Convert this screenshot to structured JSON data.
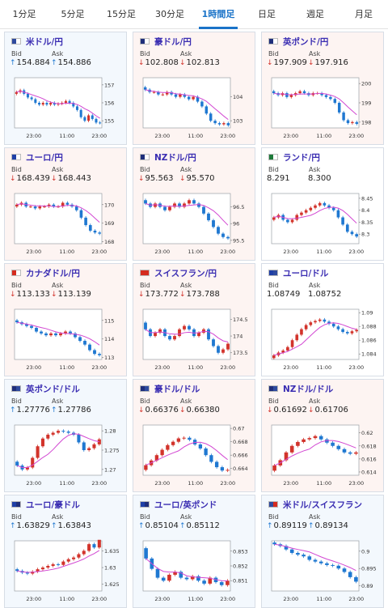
{
  "tabs": [
    {
      "label": "1分足",
      "active": false
    },
    {
      "label": "5分足",
      "active": false
    },
    {
      "label": "15分足",
      "active": false
    },
    {
      "label": "30分足",
      "active": false
    },
    {
      "label": "1時間足",
      "active": true
    },
    {
      "label": "日足",
      "active": false
    },
    {
      "label": "週足",
      "active": false
    },
    {
      "label": "月足",
      "active": false
    }
  ],
  "labels": {
    "bid": "Bid",
    "ask": "Ask"
  },
  "colors": {
    "up": "#1f78d1",
    "down": "#d2332b",
    "ma": "#d247d2",
    "accent": "#1a73c8"
  },
  "cards": [
    {
      "name": "米ドル/円",
      "dir": "up",
      "bid": "154.884",
      "ask": "154.886",
      "flags": [
        "#2e4a9e",
        "#ffffff"
      ],
      "yticks": [
        "157",
        "156",
        "155"
      ],
      "xticks": [
        "23:00",
        "11:00",
        "23:00"
      ]
    },
    {
      "name": "豪ドル/円",
      "dir": "down",
      "bid": "102.808",
      "ask": "102.813",
      "flags": [
        "#1f2e7a",
        "#ffffff"
      ],
      "yticks": [
        "104",
        "103"
      ],
      "xticks": [
        "23:00",
        "11:00",
        "23:00"
      ]
    },
    {
      "name": "英ポンド/円",
      "dir": "down",
      "bid": "197.909",
      "ask": "197.916",
      "flags": [
        "#1f2e7a",
        "#ffffff"
      ],
      "yticks": [
        "200",
        "199",
        "198"
      ],
      "xticks": [
        "23:00",
        "11:00",
        "23:00"
      ]
    },
    {
      "name": "ユーロ/円",
      "dir": "down",
      "bid": "168.439",
      "ask": "168.443",
      "flags": [
        "#1f3fa6",
        "#ffffff"
      ],
      "yticks": [
        "170",
        "169",
        "168"
      ],
      "xticks": [
        "23:00",
        "11:00",
        "23:00"
      ]
    },
    {
      "name": "NZドル/円",
      "dir": "down",
      "bid": "95.563",
      "ask": "95.570",
      "flags": [
        "#1f2e7a",
        "#ffffff"
      ],
      "yticks": [
        "96.5",
        "96",
        "95.5"
      ],
      "xticks": [
        "23:00",
        "11:00",
        "23:00"
      ]
    },
    {
      "name": "ランド/円",
      "dir": "none",
      "bid": "8.291",
      "ask": "8.300",
      "flags": [
        "#1d7a3a",
        "#ffffff"
      ],
      "yticks": [
        "8.45",
        "8.4",
        "8.35",
        "8.3"
      ],
      "xticks": [
        "23:00",
        "11:00",
        "23:00"
      ]
    },
    {
      "name": "カナダドル/円",
      "dir": "down",
      "bid": "113.133",
      "ask": "113.139",
      "flags": [
        "#d52b1e",
        "#ffffff"
      ],
      "yticks": [
        "115",
        "114",
        "113"
      ],
      "xticks": [
        "23:00",
        "11:00",
        "23:00"
      ]
    },
    {
      "name": "スイスフラン/円",
      "dir": "down",
      "bid": "173.772",
      "ask": "173.788",
      "flags": [
        "#d52b1e",
        "#d52b1e"
      ],
      "yticks": [
        "174.5",
        "174",
        "173.5"
      ],
      "xticks": [
        "23:00",
        "11:00",
        "23:00"
      ]
    },
    {
      "name": "ユーロ/ドル",
      "dir": "none",
      "bid": "1.08749",
      "ask": "1.08752",
      "flags": [
        "#1f3fa6",
        "#2e4a9e"
      ],
      "yticks": [
        "1.09",
        "1.088",
        "1.086",
        "1.084"
      ],
      "xticks": [
        "23:00",
        "11:00",
        "23:00"
      ]
    },
    {
      "name": "英ポンド/ドル",
      "dir": "up",
      "bid": "1.27776",
      "ask": "1.27786",
      "flags": [
        "#1f2e7a",
        "#2e4a9e"
      ],
      "yticks": [
        "1.28",
        "1.275",
        "1.27"
      ],
      "xticks": [
        "23:00",
        "11:00",
        "23:00"
      ]
    },
    {
      "name": "豪ドル/ドル",
      "dir": "down",
      "bid": "0.66376",
      "ask": "0.66380",
      "flags": [
        "#1f2e7a",
        "#2e4a9e"
      ],
      "yticks": [
        "0.67",
        "0.668",
        "0.666",
        "0.664"
      ],
      "xticks": [
        "23:00",
        "11:00",
        "23:00"
      ]
    },
    {
      "name": "NZドル/ドル",
      "dir": "down",
      "bid": "0.61692",
      "ask": "0.61706",
      "flags": [
        "#1f2e7a",
        "#2e4a9e"
      ],
      "yticks": [
        "0.62",
        "0.618",
        "0.616",
        "0.614"
      ],
      "xticks": [
        "23:00",
        "11:00",
        "23:00"
      ]
    },
    {
      "name": "ユーロ/豪ドル",
      "dir": "up",
      "bid": "1.63829",
      "ask": "1.63843",
      "flags": [
        "#1f3fa6",
        "#1f2e7a"
      ],
      "yticks": [
        "1.635",
        "1.63",
        "1.625"
      ],
      "xticks": [
        "23:00",
        "11:00",
        "23:00"
      ]
    },
    {
      "name": "ユーロ/英ポンド",
      "dir": "up",
      "bid": "0.85104",
      "ask": "0.85112",
      "flags": [
        "#1f3fa6",
        "#1f2e7a"
      ],
      "yticks": [
        "0.853",
        "0.852",
        "0.851"
      ],
      "xticks": [
        "23:00",
        "11:00",
        "23:00"
      ]
    },
    {
      "name": "米ドル/スイスフラン",
      "dir": "up",
      "bid": "0.89119",
      "ask": "0.89134",
      "flags": [
        "#2e4a9e",
        "#d52b1e"
      ],
      "yticks": [
        "0.9",
        "0.895",
        "0.89"
      ],
      "xticks": [
        "23:00",
        "11:00",
        "23:00"
      ]
    }
  ],
  "chart_data": [
    {
      "type": "candlestick",
      "pair": "米ドル/円",
      "ylim": [
        154.6,
        157.4
      ],
      "close": [
        156.6,
        156.7,
        156.5,
        156.3,
        156.2,
        156.0,
        155.9,
        156.0,
        155.9,
        156.0,
        155.9,
        155.95,
        156.0,
        156.1,
        156.0,
        155.8,
        155.6,
        155.2,
        155.0,
        155.3,
        155.1,
        154.9,
        154.88
      ]
    },
    {
      "type": "candlestick",
      "pair": "豪ドル/円",
      "ylim": [
        102.7,
        104.8
      ],
      "close": [
        104.3,
        104.2,
        104.2,
        104.1,
        104.1,
        104.2,
        104.1,
        104.0,
        104.1,
        104.0,
        103.9,
        104.0,
        103.8,
        103.6,
        103.3,
        103.0,
        102.9,
        102.85,
        102.9,
        102.81
      ]
    },
    {
      "type": "candlestick",
      "pair": "英ポンド/円",
      "ylim": [
        197.7,
        200.3
      ],
      "close": [
        199.5,
        199.4,
        199.5,
        199.3,
        199.4,
        199.5,
        199.6,
        199.5,
        199.4,
        199.5,
        199.5,
        199.4,
        199.3,
        199.2,
        199.0,
        198.5,
        198.1,
        197.95,
        198.0,
        197.91
      ]
    },
    {
      "type": "candlestick",
      "pair": "ユーロ/円",
      "ylim": [
        167.9,
        170.6
      ],
      "close": [
        170.0,
        170.1,
        169.9,
        169.9,
        169.8,
        169.9,
        169.9,
        170.0,
        169.9,
        169.9,
        170.1,
        170.0,
        169.9,
        169.7,
        169.3,
        168.9,
        168.6,
        168.5,
        168.44
      ]
    },
    {
      "type": "candlestick",
      "pair": "NZドル/円",
      "ylim": [
        95.4,
        96.9
      ],
      "close": [
        96.6,
        96.5,
        96.6,
        96.5,
        96.4,
        96.5,
        96.6,
        96.5,
        96.6,
        96.7,
        96.6,
        96.5,
        96.3,
        96.1,
        95.9,
        95.7,
        95.6,
        95.56
      ]
    },
    {
      "type": "candlestick",
      "pair": "ランド/円",
      "ylim": [
        8.26,
        8.47
      ],
      "close": [
        8.37,
        8.38,
        8.36,
        8.35,
        8.36,
        8.38,
        8.39,
        8.4,
        8.41,
        8.42,
        8.43,
        8.42,
        8.41,
        8.4,
        8.37,
        8.34,
        8.31,
        8.3,
        8.29
      ]
    },
    {
      "type": "candlestick",
      "pair": "カナダドル/円",
      "ylim": [
        112.9,
        115.6
      ],
      "close": [
        114.9,
        114.8,
        114.7,
        114.6,
        114.4,
        114.3,
        114.2,
        114.3,
        114.2,
        114.3,
        114.4,
        114.3,
        114.1,
        113.9,
        113.7,
        113.4,
        113.2,
        113.13
      ]
    },
    {
      "type": "candlestick",
      "pair": "スイスフラン/円",
      "ylim": [
        173.3,
        174.8
      ],
      "close": [
        174.2,
        174.0,
        174.1,
        174.2,
        174.0,
        173.9,
        174.0,
        174.2,
        174.3,
        174.2,
        174.0,
        174.1,
        174.2,
        173.9,
        173.7,
        173.5,
        173.6,
        173.77
      ]
    },
    {
      "type": "candlestick",
      "pair": "ユーロ/ドル",
      "ylim": [
        1.0832,
        1.0905
      ],
      "close": [
        1.0838,
        1.0842,
        1.0845,
        1.085,
        1.086,
        1.0868,
        1.0876,
        1.0882,
        1.0886,
        1.0888,
        1.089,
        1.0887,
        1.0884,
        1.088,
        1.0876,
        1.0872,
        1.087,
        1.0873,
        1.0875
      ]
    },
    {
      "type": "candlestick",
      "pair": "英ポンド/ドル",
      "ylim": [
        1.2685,
        1.2815
      ],
      "close": [
        1.271,
        1.27,
        1.2705,
        1.273,
        1.276,
        1.278,
        1.279,
        1.2795,
        1.28,
        1.2798,
        1.2795,
        1.279,
        1.277,
        1.275,
        1.2755,
        1.2765,
        1.2778
      ]
    },
    {
      "type": "candlestick",
      "pair": "豪ドル/ドル",
      "ylim": [
        0.663,
        0.6705
      ],
      "close": [
        0.6645,
        0.6652,
        0.666,
        0.6668,
        0.6675,
        0.668,
        0.6685,
        0.6686,
        0.6683,
        0.6676,
        0.667,
        0.666,
        0.665,
        0.6642,
        0.6637,
        0.6638
      ]
    },
    {
      "type": "candlestick",
      "pair": "NZドル/ドル",
      "ylim": [
        0.6135,
        0.6212
      ],
      "close": [
        0.615,
        0.6158,
        0.617,
        0.618,
        0.6186,
        0.619,
        0.6192,
        0.6195,
        0.619,
        0.6185,
        0.618,
        0.6175,
        0.617,
        0.6168,
        0.617
      ]
    },
    {
      "type": "candlestick",
      "pair": "ユーロ/豪ドル",
      "ylim": [
        1.623,
        1.638
      ],
      "close": [
        1.629,
        1.6285,
        1.6282,
        1.6288,
        1.6295,
        1.63,
        1.6305,
        1.631,
        1.6308,
        1.6318,
        1.6325,
        1.633,
        1.634,
        1.635,
        1.637,
        1.636,
        1.6383
      ]
    },
    {
      "type": "candlestick",
      "pair": "ユーロ/英ポンド",
      "ylim": [
        0.8503,
        0.8537
      ],
      "close": [
        0.8525,
        0.8518,
        0.8512,
        0.851,
        0.8514,
        0.8516,
        0.8512,
        0.8511,
        0.8513,
        0.851,
        0.8508,
        0.8512,
        0.8509,
        0.8507,
        0.851
      ]
    },
    {
      "type": "candlestick",
      "pair": "米ドル/スイスフラン",
      "ylim": [
        0.8885,
        0.903
      ],
      "close": [
        0.902,
        0.9015,
        0.9005,
        0.8995,
        0.899,
        0.8985,
        0.8975,
        0.897,
        0.8965,
        0.896,
        0.8958,
        0.895,
        0.894,
        0.8925,
        0.8912
      ]
    }
  ]
}
